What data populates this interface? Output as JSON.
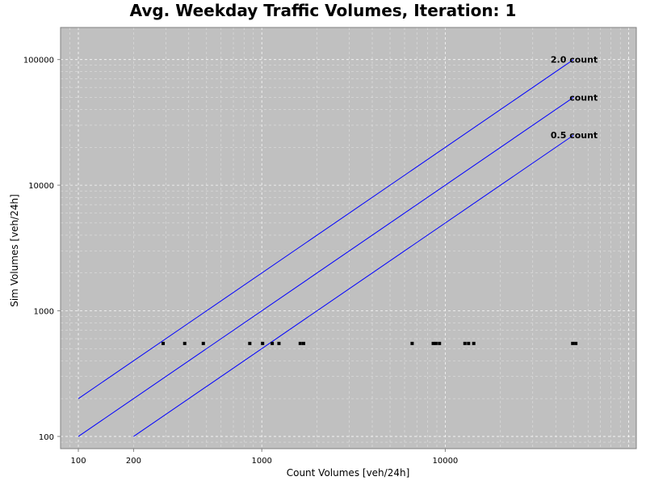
{
  "chart_data": {
    "type": "scatter",
    "title": "Avg. Weekday Traffic Volumes, Iteration: 1",
    "xlabel": "Count Volumes [veh/24h]",
    "ylabel": "Sim Volumes [veh/24h]",
    "x_scale": "log",
    "y_scale": "log",
    "xlim": [
      80,
      110000
    ],
    "ylim": [
      80,
      180000
    ],
    "x_ticks": [
      100,
      200,
      1000,
      10000
    ],
    "x_tick_labels": [
      "100",
      "200",
      "1000",
      "10000"
    ],
    "y_ticks": [
      100,
      1000,
      10000,
      100000
    ],
    "y_tick_labels": [
      "100",
      "1000",
      "10000",
      "100000"
    ],
    "grid": true,
    "background": "#c0c0c0",
    "reference_lines": [
      {
        "label": "2.0 count",
        "factor": 2.0,
        "x_start": 100,
        "x_end": 50000,
        "color": "#0000ff"
      },
      {
        "label": "count",
        "factor": 1.0,
        "x_start": 100,
        "x_end": 50000,
        "color": "#0000ff"
      },
      {
        "label": "0.5 count",
        "factor": 0.5,
        "x_start": 200,
        "x_end": 50000,
        "color": "#0000ff"
      }
    ],
    "series": [
      {
        "color": "#000000",
        "points": [
          {
            "x": 290,
            "y": 550
          },
          {
            "x": 380,
            "y": 550
          },
          {
            "x": 480,
            "y": 550
          },
          {
            "x": 860,
            "y": 550
          },
          {
            "x": 1010,
            "y": 550
          },
          {
            "x": 1140,
            "y": 550
          },
          {
            "x": 1240,
            "y": 550
          },
          {
            "x": 1620,
            "y": 550
          },
          {
            "x": 1690,
            "y": 550
          },
          {
            "x": 6600,
            "y": 550
          },
          {
            "x": 8600,
            "y": 550
          },
          {
            "x": 8900,
            "y": 550
          },
          {
            "x": 9300,
            "y": 550
          },
          {
            "x": 12800,
            "y": 550
          },
          {
            "x": 13400,
            "y": 550
          },
          {
            "x": 14300,
            "y": 550
          },
          {
            "x": 49500,
            "y": 550
          },
          {
            "x": 51500,
            "y": 550
          }
        ]
      }
    ]
  }
}
